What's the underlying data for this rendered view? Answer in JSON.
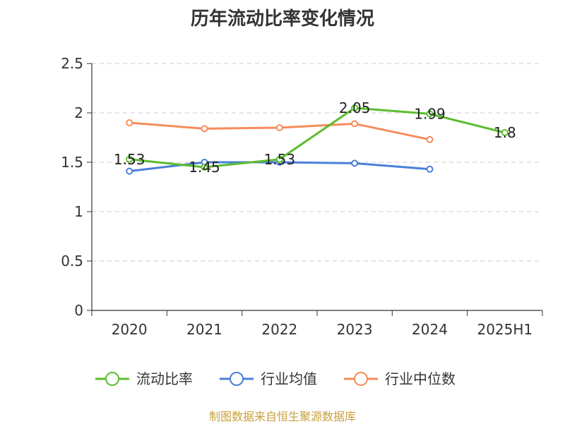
{
  "chart_data": {
    "type": "line",
    "title": "历年流动比率变化情况",
    "categories": [
      "2020",
      "2021",
      "2022",
      "2023",
      "2024",
      "2025H1"
    ],
    "ylim": [
      0,
      2.5
    ],
    "yticks": [
      "0",
      "0.5",
      "1",
      "1.5",
      "2",
      "2.5"
    ],
    "grid": true,
    "legend_position": "bottom",
    "series": [
      {
        "name": "流动比率",
        "color": "#5cbd2e",
        "values": [
          1.53,
          1.45,
          1.53,
          2.05,
          1.99,
          1.8
        ],
        "labels": [
          "1.53",
          "1.45",
          "1.53",
          "2.05",
          "1.99",
          "1.8"
        ]
      },
      {
        "name": "行业均值",
        "color": "#4a7fd6",
        "values": [
          1.41,
          1.5,
          1.5,
          1.49,
          1.43,
          null
        ]
      },
      {
        "name": "行业中位数",
        "color": "#f58d5a",
        "values": [
          1.9,
          1.84,
          1.85,
          1.89,
          1.73,
          null
        ]
      }
    ]
  },
  "source": "制图数据来自恒生聚源数据库"
}
